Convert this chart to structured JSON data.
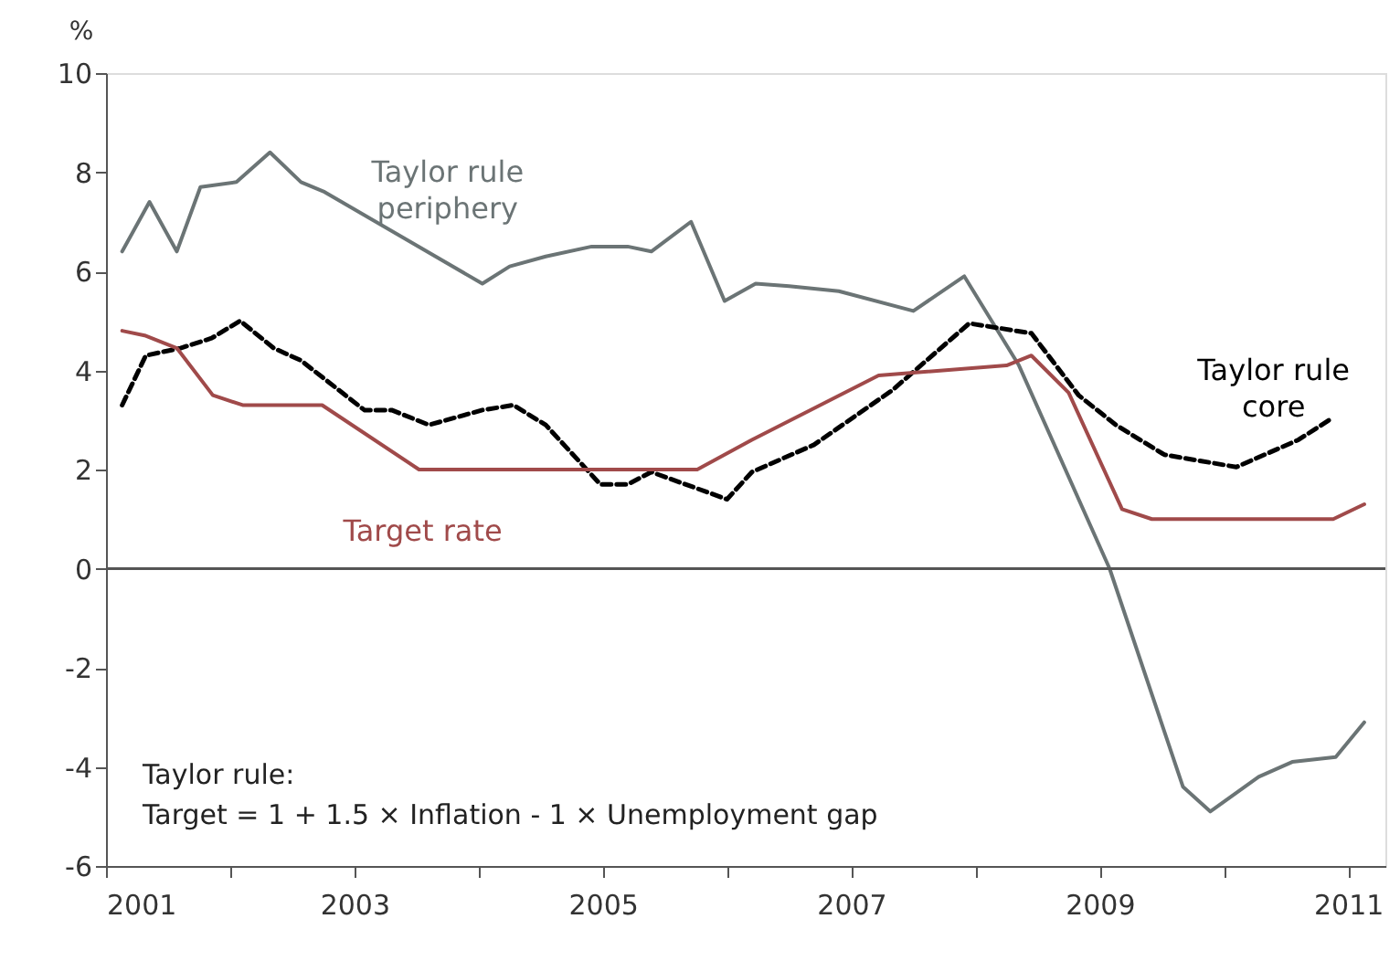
{
  "chart_data": {
    "type": "line",
    "ylabel": "%",
    "xlim": [
      2001,
      2011.3
    ],
    "xticks": [
      2001,
      {
        "value": 2002,
        "label": null
      },
      2003,
      {
        "value": 2004,
        "label": null
      },
      2005,
      {
        "value": 2006,
        "label": null
      },
      2007,
      {
        "value": 2008,
        "label": null
      },
      2009,
      {
        "value": 2010,
        "label": null
      },
      2011
    ],
    "ylim": [
      -6,
      10
    ],
    "yticks": [
      -6,
      -4,
      -2,
      0,
      2,
      4,
      6,
      8,
      10
    ],
    "grid": false,
    "marker": "none",
    "series": [
      {
        "name": "Taylor rule periphery",
        "color": "#6b7475",
        "line_style": "solid",
        "x": [
          2001.13,
          2001.35,
          2001.57,
          2001.76,
          2002.05,
          2002.32,
          2002.57,
          2002.76,
          2004.03,
          2004.25,
          2004.54,
          2004.91,
          2005.2,
          2005.39,
          2005.71,
          2005.98,
          2006.23,
          2006.5,
          2006.9,
          2007.5,
          2007.91,
          2008.35,
          2009.08,
          2009.67,
          2009.89,
          2010.28,
          2010.55,
          2010.9,
          2011.13
        ],
        "values": [
          6.4,
          7.4,
          6.4,
          7.7,
          7.8,
          8.4,
          7.8,
          7.6,
          5.75,
          6.1,
          6.3,
          6.5,
          6.5,
          6.4,
          7.0,
          5.4,
          5.75,
          5.7,
          5.6,
          5.2,
          5.9,
          4.1,
          0.0,
          -4.4,
          -4.9,
          -4.2,
          -3.9,
          -3.8,
          -3.1
        ]
      },
      {
        "name": "Taylor rule core",
        "color": "#000000",
        "line_style": "dashed",
        "x": [
          2001.13,
          2001.32,
          2001.6,
          2001.85,
          2002.08,
          2002.35,
          2002.57,
          2003.08,
          2003.3,
          2003.6,
          2004.03,
          2004.28,
          2004.54,
          2004.98,
          2005.2,
          2005.39,
          2006.0,
          2006.2,
          2006.7,
          2007.33,
          2007.95,
          2008.45,
          2008.83,
          2009.13,
          2009.52,
          2010.1,
          2010.6,
          2010.88
        ],
        "values": [
          3.3,
          4.3,
          4.45,
          4.65,
          5.0,
          4.45,
          4.2,
          3.2,
          3.2,
          2.9,
          3.2,
          3.3,
          2.9,
          1.7,
          1.7,
          1.95,
          1.4,
          1.95,
          2.5,
          3.6,
          4.95,
          4.75,
          3.5,
          2.9,
          2.3,
          2.05,
          2.6,
          3.05
        ]
      },
      {
        "name": "Target rate",
        "color": "#a04a4a",
        "line_style": "solid",
        "x": [
          2001.13,
          2001.32,
          2001.57,
          2001.86,
          2002.1,
          2002.74,
          2003.52,
          2005.76,
          2006.2,
          2007.22,
          2008.25,
          2008.45,
          2008.75,
          2009.18,
          2009.42,
          2010.88,
          2011.13
        ],
        "values": [
          4.8,
          4.7,
          4.45,
          3.5,
          3.3,
          3.3,
          2.0,
          2.0,
          2.6,
          3.9,
          4.1,
          4.3,
          3.55,
          1.2,
          1.0,
          1.0,
          1.3
        ]
      }
    ],
    "ref_lines": [
      {
        "axis": "y",
        "value": 0,
        "label": null,
        "color": "#555555"
      }
    ],
    "annotations": [
      "Taylor rule:",
      "Target = 1 + 1.5 × Inflation - 1 × Unemployment gap"
    ]
  }
}
